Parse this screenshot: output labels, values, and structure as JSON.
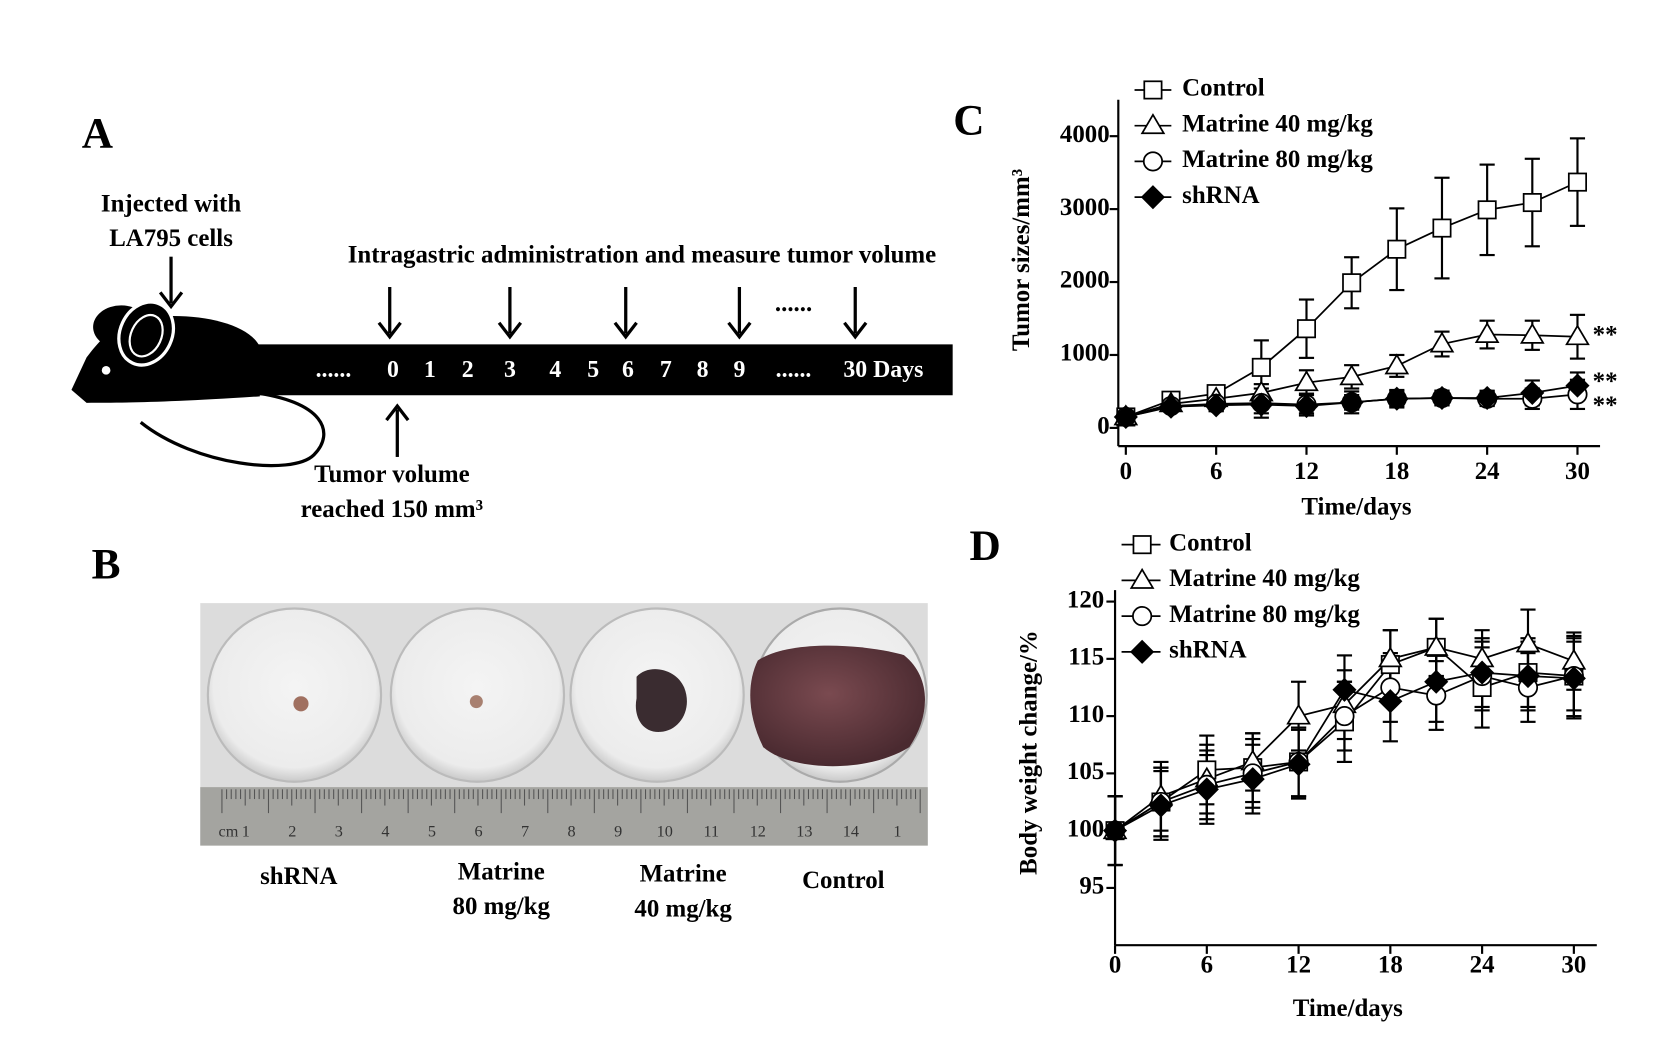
{
  "panel_a": {
    "label": "A",
    "injected": [
      "Injected with",
      "LA795 cells"
    ],
    "administration": "Intragastric administration and measure tumor volume",
    "timeline": [
      "......",
      "0",
      "1",
      "2",
      "3",
      "4",
      "5",
      "6",
      "7",
      "8",
      "9",
      "......",
      "30 Days"
    ],
    "dots": "......",
    "reached": [
      "Tumor volume",
      "reached 150 mm³"
    ]
  },
  "panel_b": {
    "label": "B",
    "groups": [
      [
        "shRNA"
      ],
      [
        "Matrine",
        "80 mg/kg"
      ],
      [
        "Matrine",
        "40 mg/kg"
      ],
      [
        "Control"
      ]
    ],
    "ruler_unit": "cm",
    "ruler": [
      "1",
      "2",
      "3",
      "4",
      "5",
      "6",
      "7",
      "8",
      "9",
      "10",
      "11",
      "12",
      "13",
      "14",
      "1"
    ]
  },
  "chart_data": [
    {
      "type": "line",
      "panel_label": "C",
      "x_label": "Time/days",
      "y_label": "Tumor sizes/mm³",
      "x": [
        0,
        3,
        6,
        9,
        12,
        15,
        18,
        21,
        24,
        27,
        30
      ],
      "xlim": [
        -0.5,
        31.5
      ],
      "xticks": [
        0,
        6,
        12,
        18,
        24,
        30
      ],
      "ylim": [
        -250,
        4500
      ],
      "yticks": [
        0,
        1000,
        2000,
        3000,
        4000
      ],
      "series": [
        {
          "name": "Control",
          "color": "#000000",
          "marker": "square",
          "values": [
            150,
            380,
            470,
            830,
            1360,
            1990,
            2450,
            2740,
            2990,
            3090,
            3370
          ],
          "errors": [
            30,
            60,
            80,
            370,
            400,
            350,
            560,
            690,
            620,
            600,
            600
          ]
        },
        {
          "name": "Matrine 40 mg/kg",
          "color": "#000000",
          "marker": "triangle",
          "values": [
            150,
            330,
            400,
            480,
            620,
            700,
            850,
            1150,
            1280,
            1270,
            1250
          ],
          "errors": [
            50,
            60,
            70,
            120,
            170,
            160,
            150,
            170,
            190,
            200,
            300
          ]
        },
        {
          "name": "Matrine 80 mg/kg",
          "color": "#000000",
          "marker": "circle",
          "values": [
            150,
            300,
            330,
            340,
            320,
            350,
            400,
            410,
            400,
            400,
            460
          ],
          "errors": [
            50,
            80,
            100,
            200,
            150,
            150,
            120,
            100,
            100,
            140,
            200
          ]
        },
        {
          "name": "shRNA",
          "color": "#000000",
          "marker": "diamond",
          "values": [
            150,
            290,
            310,
            320,
            300,
            350,
            400,
            410,
            410,
            480,
            580
          ],
          "errors": [
            50,
            60,
            80,
            120,
            100,
            100,
            100,
            100,
            100,
            170,
            180
          ]
        }
      ],
      "annotations": [
        "**",
        "**",
        "**"
      ]
    },
    {
      "type": "line",
      "panel_label": "D",
      "x_label": "Time/days",
      "y_label": "Body weight change/%",
      "x": [
        0,
        3,
        6,
        9,
        12,
        15,
        18,
        21,
        24,
        27,
        30
      ],
      "xlim": [
        0,
        31.5
      ],
      "xticks": [
        0,
        6,
        12,
        18,
        24,
        30
      ],
      "ylim": [
        90,
        121
      ],
      "yticks": [
        95,
        100,
        105,
        110,
        115,
        120
      ],
      "series": [
        {
          "name": "Control",
          "color": "#000000",
          "marker": "square",
          "values": [
            100,
            102.5,
            105.3,
            105.5,
            106,
            109.5,
            114.5,
            116,
            112.5,
            113.8,
            113.5
          ],
          "errors": [
            3,
            3,
            3,
            3,
            3,
            3.5,
            3,
            2.5,
            3.5,
            3,
            3.5
          ]
        },
        {
          "name": "Matrine 40 mg/kg",
          "color": "#000000",
          "marker": "triangle",
          "values": [
            100,
            103,
            104.5,
            106,
            110,
            111,
            115,
            116,
            115,
            116.3,
            114.8
          ],
          "errors": [
            3,
            3,
            3,
            2.5,
            3,
            3,
            2.5,
            2.5,
            2.5,
            3,
            2.5
          ]
        },
        {
          "name": "Matrine 80 mg/kg",
          "color": "#000000",
          "marker": "circle",
          "values": [
            100,
            102.5,
            104,
            105,
            106,
            110,
            112.5,
            111.8,
            113.5,
            112.5,
            113.5
          ],
          "errors": [
            3,
            3,
            3,
            3,
            3,
            3,
            3,
            3,
            3,
            3,
            3
          ]
        },
        {
          "name": "shRNA",
          "color": "#000000",
          "marker": "diamond",
          "values": [
            100,
            102.2,
            103.6,
            104.5,
            105.8,
            112.3,
            111.3,
            113,
            113.8,
            113.5,
            113.3
          ],
          "errors": [
            3,
            3,
            3,
            3,
            3,
            3,
            3.5,
            3.5,
            3,
            3,
            3.5
          ]
        }
      ]
    }
  ]
}
